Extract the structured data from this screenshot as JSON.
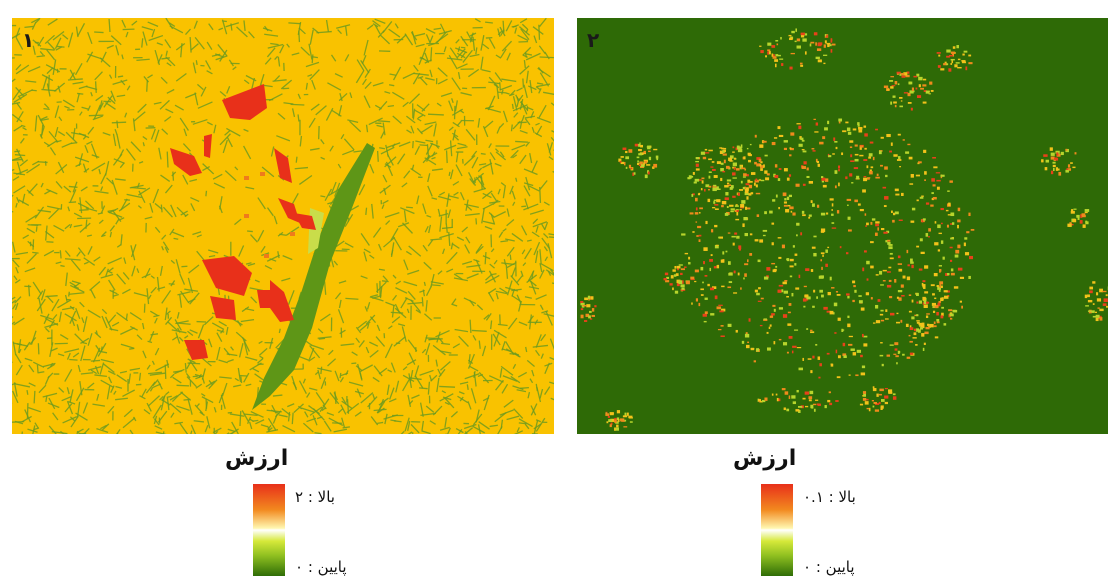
{
  "panels": [
    {
      "number": "۱",
      "surface": "suitability-map-slope-landuse",
      "colors": {
        "base": "#f9c200",
        "texture": "#6f9b1e",
        "high": "#e8301a",
        "valley": "#5e9617"
      }
    },
    {
      "number": "۲",
      "surface": "suitability-map-urban-cluster",
      "colors": {
        "base": "#2e6a06",
        "mid": "#f3c21a",
        "high": "#e8421a",
        "low": "#b7d52c"
      }
    }
  ],
  "legends": [
    {
      "title": "ارزش",
      "high_label": "بالا : ۲",
      "low_label": "پایین : ۰"
    },
    {
      "title": "ارزش",
      "high_label": "بالا : ۰.۱",
      "low_label": "پایین : ۰"
    }
  ],
  "ramp_colors": {
    "top": "#e8301a",
    "middle": "#ffffff",
    "bottom": "#2f6d07"
  }
}
